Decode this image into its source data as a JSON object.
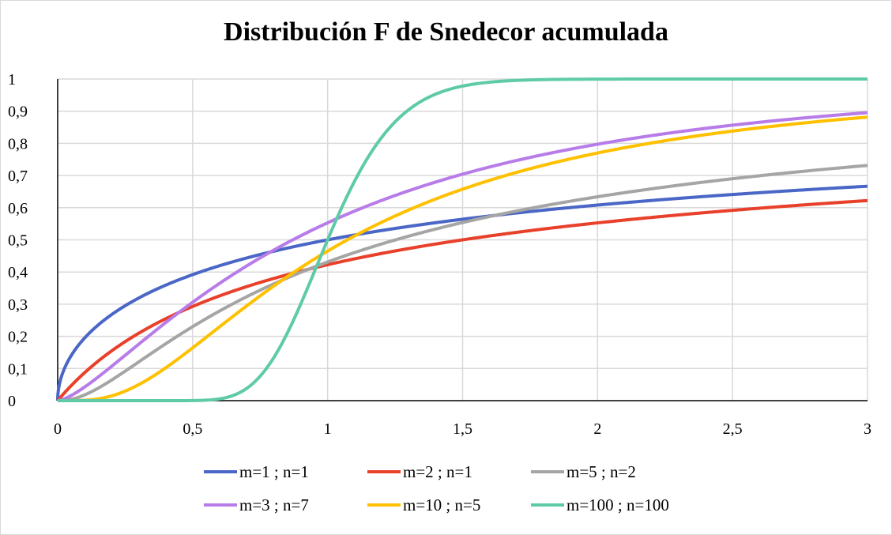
{
  "chart_data": {
    "type": "line",
    "title": "Distribución F de Snedecor acumulada",
    "xlabel": "",
    "ylabel": "",
    "xlim": [
      0,
      3
    ],
    "ylim": [
      0,
      1
    ],
    "grid": true,
    "legend_position": "bottom",
    "x_ticks": [
      "0",
      "0,5",
      "1",
      "1,5",
      "2",
      "2,5",
      "3"
    ],
    "x_tick_values": [
      0,
      0.5,
      1,
      1.5,
      2,
      2.5,
      3
    ],
    "y_ticks": [
      "0",
      "0,1",
      "0,2",
      "0,3",
      "0,4",
      "0,5",
      "0,6",
      "0,7",
      "0,8",
      "0,9",
      "1"
    ],
    "y_tick_values": [
      0,
      0.1,
      0.2,
      0.3,
      0.4,
      0.5,
      0.6,
      0.7,
      0.8,
      0.9,
      1
    ],
    "x": [
      0,
      0.5,
      1,
      1.5,
      2,
      2.5,
      3
    ],
    "series": [
      {
        "name": "m=1 ; n=1",
        "m": 1,
        "n": 1,
        "color": "#4a66c6",
        "values": [
          0,
          0.39,
          0.5,
          0.56,
          0.61,
          0.64,
          0.67
        ]
      },
      {
        "name": "m=2 ; n=1",
        "m": 2,
        "n": 1,
        "color": "#e8402a",
        "values": [
          0,
          0.29,
          0.42,
          0.5,
          0.55,
          0.59,
          0.62
        ]
      },
      {
        "name": "m=5 ; n=2",
        "m": 5,
        "n": 2,
        "color": "#a5a5a5",
        "values": [
          0,
          0.23,
          0.43,
          0.56,
          0.63,
          0.69,
          0.73
        ]
      },
      {
        "name": "m=3 ; n=7",
        "m": 3,
        "n": 7,
        "color": "#b77ce8",
        "values": [
          0,
          0.31,
          0.55,
          0.7,
          0.8,
          0.86,
          0.9
        ]
      },
      {
        "name": "m=10 ; n=5",
        "m": 10,
        "n": 5,
        "color": "#ffc000",
        "values": [
          0,
          0.17,
          0.46,
          0.66,
          0.77,
          0.84,
          0.88
        ]
      },
      {
        "name": "m=100 ; n=100",
        "m": 100,
        "n": 100,
        "color": "#5ecba6",
        "values": [
          0,
          0.0,
          0.5,
          0.98,
          1.0,
          1.0,
          1.0
        ]
      }
    ]
  }
}
